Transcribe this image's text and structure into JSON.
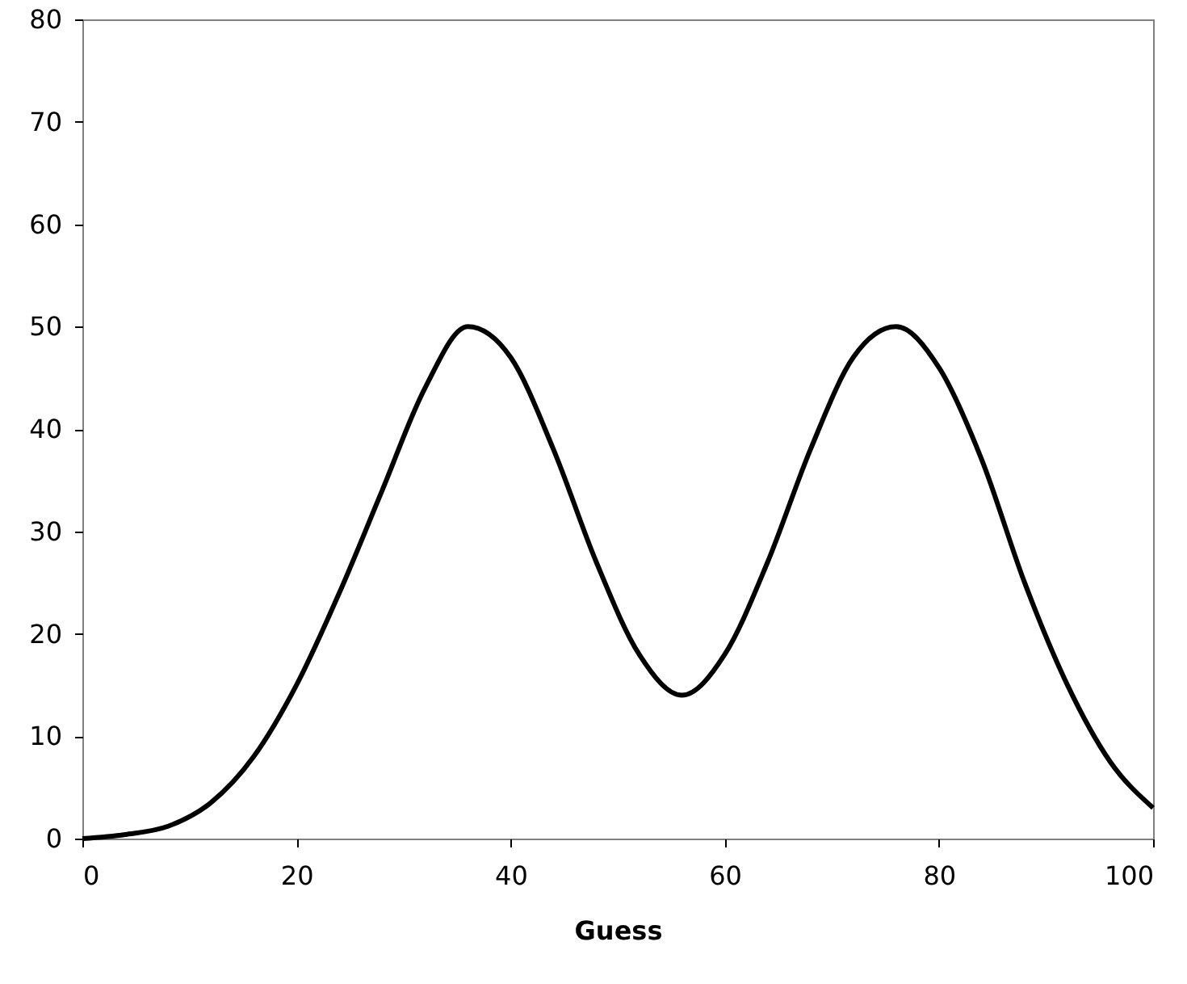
{
  "chart_data": {
    "type": "line",
    "xlabel": "Guess",
    "x": [
      0,
      4,
      8,
      12,
      16,
      20,
      24,
      28,
      32,
      36,
      40,
      44,
      48,
      52,
      56,
      60,
      64,
      68,
      72,
      76,
      80,
      84,
      88,
      92,
      96,
      100
    ],
    "series": [
      {
        "color": "#000000",
        "values": [
          0,
          0.4,
          1.2,
          3.5,
          8,
          15,
          24,
          34,
          44,
          50,
          47,
          38,
          27,
          18,
          14,
          18,
          27,
          38,
          47,
          50,
          46,
          37,
          25,
          15,
          7.5,
          3
        ]
      }
    ],
    "xlim": [
      0,
      100
    ],
    "xticks": [
      0,
      20,
      40,
      60,
      80,
      100
    ],
    "ylim": [
      0,
      80
    ],
    "yticks": [
      0,
      10,
      20,
      30,
      40,
      50,
      60,
      70,
      80
    ],
    "grid": false,
    "marker": "none",
    "line_style": "solid"
  }
}
